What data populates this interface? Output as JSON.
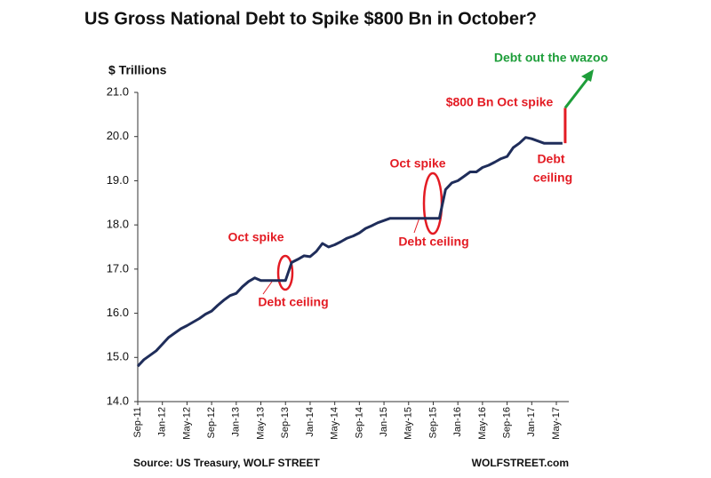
{
  "chart_data": {
    "type": "line",
    "title": "US Gross National Debt to Spike $800 Bn in October?",
    "y_label": "$ Trillions",
    "categories": [
      "Sep-11",
      null,
      null,
      null,
      "Jan-12",
      null,
      null,
      null,
      "May-12",
      null,
      null,
      null,
      "Sep-12",
      null,
      null,
      null,
      "Jan-13",
      null,
      null,
      null,
      "May-13",
      null,
      null,
      null,
      "Sep-13",
      null,
      null,
      null,
      "Jan-14",
      null,
      null,
      null,
      "May-14",
      null,
      null,
      null,
      "Sep-14",
      null,
      null,
      null,
      "Jan-15",
      null,
      null,
      null,
      "May-15",
      null,
      null,
      null,
      "Sep-15",
      null,
      null,
      null,
      "Jan-16",
      null,
      null,
      null,
      "May-16",
      null,
      null,
      null,
      "Sep-16",
      null,
      null,
      null,
      "Jan-17",
      null,
      null,
      null,
      "May-17",
      null
    ],
    "series": [
      {
        "color": "#1f2d5a",
        "values": [
          14.8,
          14.95,
          15.05,
          15.15,
          15.3,
          15.45,
          15.55,
          15.65,
          15.72,
          15.8,
          15.88,
          15.98,
          16.05,
          16.18,
          16.3,
          16.4,
          16.45,
          16.6,
          16.72,
          16.8,
          16.74,
          16.74,
          16.74,
          16.74,
          16.74,
          17.15,
          17.22,
          17.3,
          17.28,
          17.4,
          17.58,
          17.5,
          17.55,
          17.62,
          17.7,
          17.75,
          17.82,
          17.92,
          17.98,
          18.05,
          18.1,
          18.15,
          18.15,
          18.15,
          18.15,
          18.15,
          18.15,
          18.15,
          18.15,
          18.15,
          18.8,
          18.95,
          19.0,
          19.1,
          19.2,
          19.2,
          19.3,
          19.35,
          19.42,
          19.5,
          19.55,
          19.75,
          19.85,
          19.98,
          19.95,
          19.9,
          19.85,
          19.85,
          19.85,
          19.85
        ]
      }
    ],
    "spike": {
      "from": 19.85,
      "to": 20.65,
      "color": "#e31b23"
    },
    "ylim": [
      14,
      21
    ],
    "yticks": [
      {
        "value": 14,
        "label": "14.0"
      },
      {
        "value": 15,
        "label": "15.0"
      },
      {
        "value": 16,
        "label": "16.0"
      },
      {
        "value": 17,
        "label": "17.0"
      },
      {
        "value": 18,
        "label": "18.0"
      },
      {
        "value": 19,
        "label": "19.0"
      },
      {
        "value": 20,
        "label": "20.0"
      },
      {
        "value": 21,
        "label": "21.0"
      }
    ],
    "grid": false,
    "annotations": [
      {
        "text": "Debt out the wazoo",
        "color": "#1e9e3a"
      },
      {
        "text": "$800 Bn Oct spike",
        "color": "#e31b23"
      },
      {
        "text": "Oct spike",
        "color": "#e31b23"
      },
      {
        "text": "Debt ceiling",
        "color": "#e31b23"
      },
      {
        "text": "Oct spike",
        "color": "#e31b23"
      },
      {
        "text": "Debt ceiling",
        "color": "#e31b23"
      },
      {
        "text": "Debt",
        "color": "#e31b23"
      },
      {
        "text": "ceiling",
        "color": "#e31b23"
      }
    ],
    "source": "Source: US Treasury, WOLF STREET",
    "credit": "WOLFSTREET.com"
  }
}
